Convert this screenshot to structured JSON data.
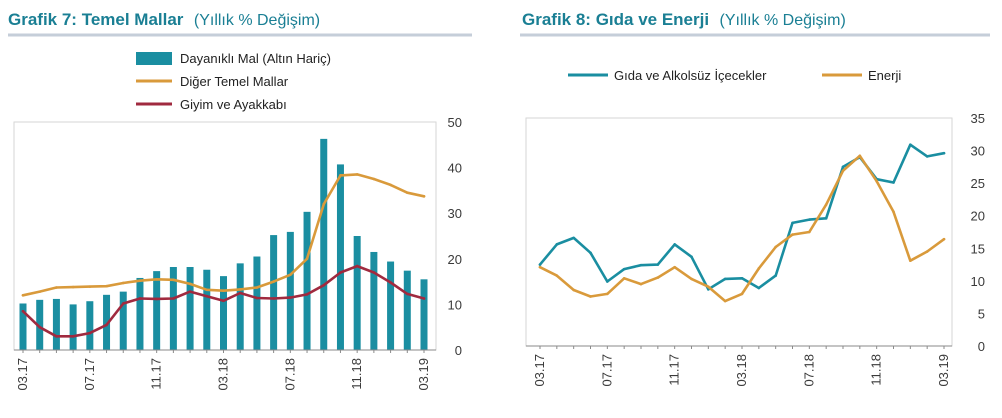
{
  "chart_data": [
    {
      "type": "bar-line",
      "title": "Grafik 7: Temel Mallar",
      "subtitle": "(Yıllık % Değişim)",
      "title_color": "#1a7f94",
      "x": [
        "03.17",
        "04.17",
        "05.17",
        "06.17",
        "07.17",
        "08.17",
        "09.17",
        "10.17",
        "11.17",
        "12.17",
        "01.18",
        "02.18",
        "03.18",
        "04.18",
        "05.18",
        "06.18",
        "07.18",
        "08.18",
        "09.18",
        "10.18",
        "11.18",
        "12.18",
        "01.19",
        "02.19",
        "03.19"
      ],
      "xtick_labels": [
        "03.17",
        "07.17",
        "11.17",
        "03.18",
        "07.18",
        "11.18",
        "03.19"
      ],
      "ylim": [
        0,
        50
      ],
      "yticks": [
        0,
        10,
        20,
        30,
        40,
        50
      ],
      "y_axis_side": "right",
      "grid": false,
      "series": [
        {
          "name": "Dayanıklı Mal (Altın Hariç)",
          "kind": "bar",
          "color": "#1a8ea1",
          "values": [
            10.2,
            11.0,
            11.2,
            10.0,
            10.7,
            12.1,
            12.8,
            15.8,
            17.3,
            18.2,
            18.2,
            17.6,
            16.2,
            19.0,
            20.5,
            25.2,
            25.9,
            30.3,
            46.3,
            40.7,
            25.0,
            21.5,
            19.4,
            17.4,
            15.5
          ]
        },
        {
          "name": "Diğer Temel Mallar",
          "kind": "line",
          "color": "#d99a3b",
          "values": [
            12.0,
            12.8,
            13.7,
            13.8,
            13.9,
            14.0,
            14.7,
            15.2,
            15.5,
            15.4,
            14.5,
            13.2,
            13.0,
            13.3,
            13.7,
            15.0,
            16.5,
            20.0,
            32.0,
            38.3,
            38.5,
            37.5,
            36.2,
            34.5,
            33.7
          ]
        },
        {
          "name": "Giyim ve Ayakkabı",
          "kind": "line",
          "color": "#a02a3f",
          "values": [
            8.5,
            5.0,
            3.0,
            3.0,
            3.7,
            5.5,
            10.2,
            11.3,
            11.2,
            11.3,
            12.8,
            11.8,
            10.8,
            12.5,
            11.4,
            11.3,
            11.5,
            12.2,
            14.2,
            17.0,
            18.4,
            17.0,
            14.8,
            12.3,
            11.3
          ]
        }
      ]
    },
    {
      "type": "line",
      "title": "Grafik 8: Gıda ve Enerji",
      "subtitle": "(Yıllık % Değişim)",
      "title_color": "#1a7f94",
      "x": [
        "03.17",
        "04.17",
        "05.17",
        "06.17",
        "07.17",
        "08.17",
        "09.17",
        "10.17",
        "11.17",
        "12.17",
        "01.18",
        "02.18",
        "03.18",
        "04.18",
        "05.18",
        "06.18",
        "07.18",
        "08.18",
        "09.18",
        "10.18",
        "11.18",
        "12.18",
        "01.19",
        "02.19",
        "03.19"
      ],
      "xtick_labels": [
        "03.17",
        "07.17",
        "11.17",
        "03.18",
        "07.18",
        "11.18",
        "03.19"
      ],
      "ylim": [
        0,
        35
      ],
      "yticks": [
        0,
        5,
        10,
        15,
        20,
        25,
        30,
        35
      ],
      "y_axis_side": "right",
      "grid": false,
      "series": [
        {
          "name": "Gıda ve Alkolsüz İçecekler",
          "color": "#1a8ea1",
          "values": [
            12.5,
            15.6,
            16.6,
            14.3,
            9.9,
            11.8,
            12.4,
            12.5,
            15.6,
            13.7,
            8.7,
            10.3,
            10.4,
            8.9,
            10.8,
            18.9,
            19.4,
            19.6,
            27.5,
            29.0,
            25.6,
            25.1,
            30.9,
            29.1,
            29.6
          ]
        },
        {
          "name": "Enerji",
          "color": "#d99a3b",
          "values": [
            12.1,
            10.8,
            8.6,
            7.6,
            8.0,
            10.4,
            9.5,
            10.5,
            12.1,
            10.3,
            9.1,
            6.9,
            8.0,
            11.9,
            15.2,
            17.1,
            17.5,
            21.7,
            26.9,
            29.2,
            25.3,
            20.6,
            13.1,
            14.5,
            16.4
          ]
        }
      ]
    }
  ]
}
